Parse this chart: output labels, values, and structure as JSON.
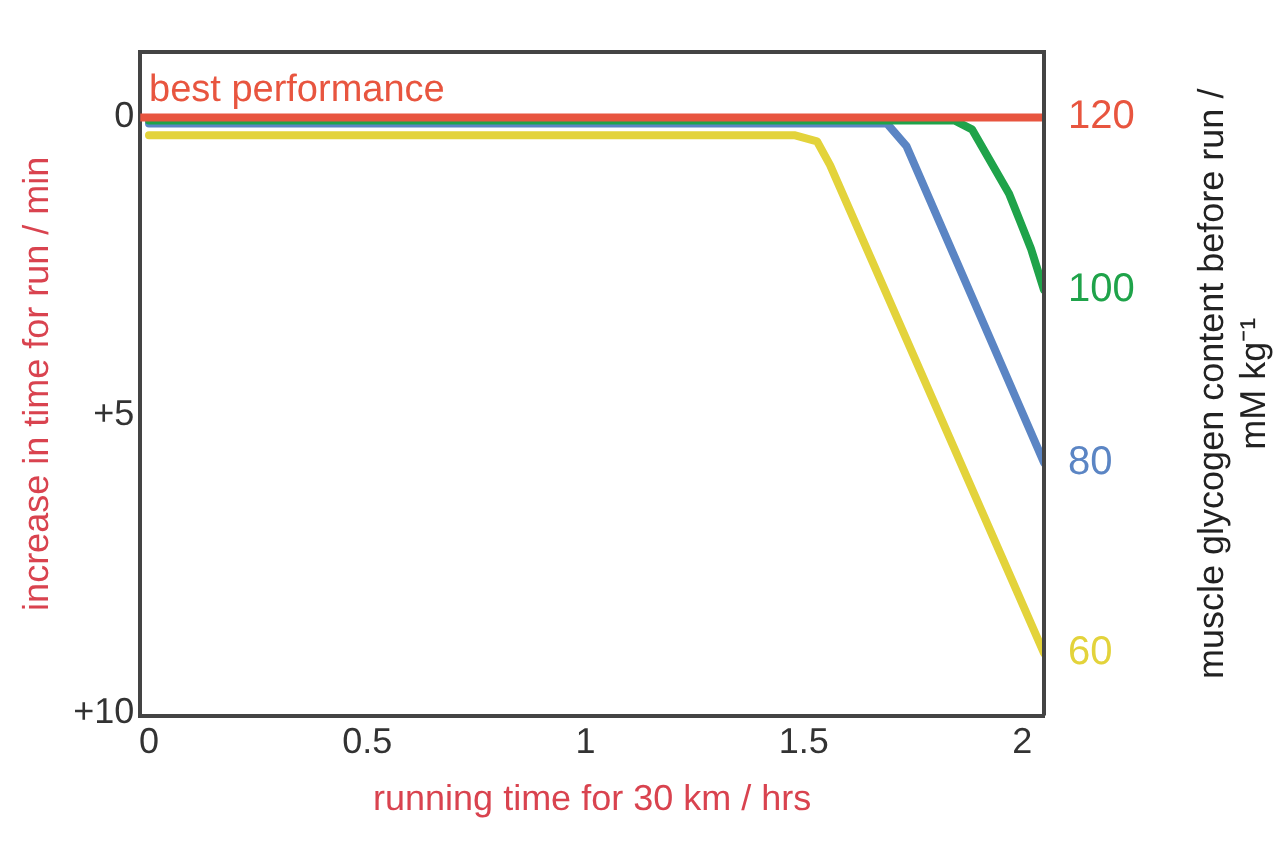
{
  "chart_data": {
    "type": "line",
    "xlabel": "running time for 30 km / hrs",
    "ylabel": "increase in time for run / min",
    "y2label": "muscle glycogen content before run / mM kg⁻¹",
    "xlim": [
      -0.02,
      2.05
    ],
    "xticks": [
      0,
      0.5,
      1,
      1.5,
      2
    ],
    "ylim": [
      10.05,
      -1.1
    ],
    "yticks": [
      0,
      {
        "value": 5,
        "label": "+5"
      },
      {
        "value": 10,
        "label": "+10"
      }
    ],
    "grid": false,
    "legend": false,
    "marker": "none",
    "line_style": "solid",
    "annotations": [
      {
        "text": "best performance",
        "x": 0,
        "y": 0
      }
    ],
    "series": [
      {
        "name": "120",
        "color": "#e8553f",
        "x": [
          -0.02,
          2.05
        ],
        "values": [
          0,
          0
        ]
      },
      {
        "name": "100",
        "color": "#1fa34a",
        "x": [
          0,
          1.845,
          1.885,
          1.97,
          2.02,
          2.05
        ],
        "values": [
          0.05,
          0.05,
          0.2,
          1.28,
          2.2,
          2.9
        ]
      },
      {
        "name": "80",
        "color": "#5b85c4",
        "x": [
          0,
          1.69,
          1.735,
          2.05
        ],
        "values": [
          0.1,
          0.1,
          0.48,
          5.8
        ]
      },
      {
        "name": "60",
        "color": "#e3d33b",
        "x": [
          0,
          1.48,
          1.53,
          1.56,
          2.05
        ],
        "values": [
          0.3,
          0.3,
          0.4,
          0.8,
          9.0
        ]
      }
    ]
  }
}
